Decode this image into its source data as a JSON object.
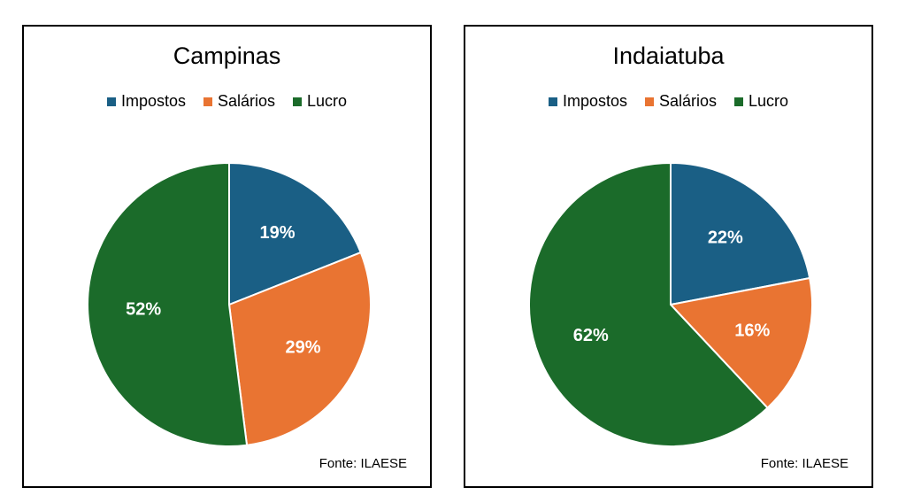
{
  "colors": {
    "impostos": "#1a5f85",
    "salarios": "#e97432",
    "lucro": "#1b6b2a"
  },
  "legend": [
    "Impostos",
    "Salários",
    "Lucro"
  ],
  "source": "Fonte: ILAESE",
  "chart_data": [
    {
      "type": "pie",
      "title": "Campinas",
      "categories": [
        "Impostos",
        "Salários",
        "Lucro"
      ],
      "values": [
        19,
        29,
        52
      ],
      "labels": [
        "19%",
        "29%",
        "52%"
      ],
      "legend_position": "top"
    },
    {
      "type": "pie",
      "title": "Indaiatuba",
      "categories": [
        "Impostos",
        "Salários",
        "Lucro"
      ],
      "values": [
        22,
        16,
        62
      ],
      "labels": [
        "22%",
        "16%",
        "62%"
      ],
      "legend_position": "top"
    }
  ]
}
